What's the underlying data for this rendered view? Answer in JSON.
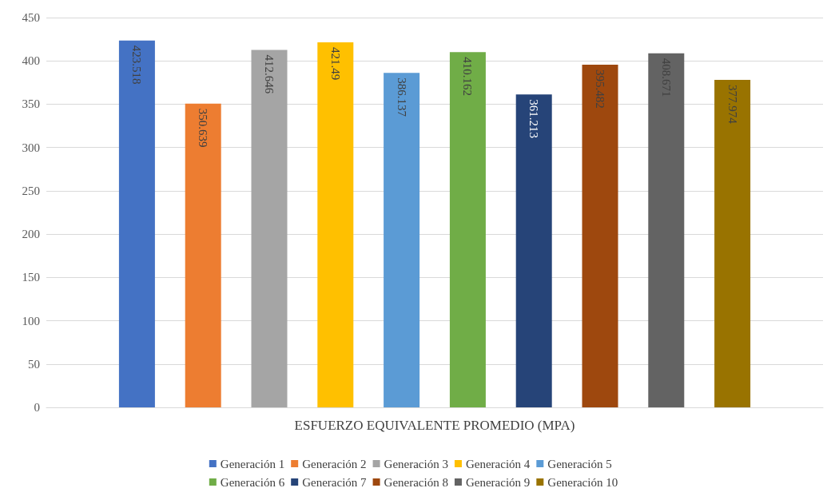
{
  "chart_data": {
    "type": "bar",
    "xlabel": "ESFUERZO EQUIVALENTE PROMEDIO (MPA)",
    "categories": [
      null
    ],
    "series": [
      {
        "name": "Generación 1",
        "color": "#4472c4",
        "values": [
          423.518
        ]
      },
      {
        "name": "Generación 2",
        "color": "#ed7d31",
        "values": [
          350.639
        ]
      },
      {
        "name": "Generación 3",
        "color": "#a5a5a5",
        "values": [
          412.646
        ]
      },
      {
        "name": "Generación 4",
        "color": "#ffc000",
        "values": [
          421.49
        ]
      },
      {
        "name": "Generación 5",
        "color": "#5b9bd5",
        "values": [
          386.137
        ]
      },
      {
        "name": "Generación 6",
        "color": "#70ad47",
        "values": [
          410.162
        ]
      },
      {
        "name": "Generación 7",
        "color": "#264478",
        "values": [
          361.213
        ]
      },
      {
        "name": "Generación 8",
        "color": "#9e480e",
        "values": [
          395.482
        ]
      },
      {
        "name": "Generación 9",
        "color": "#636363",
        "values": [
          408.671
        ]
      },
      {
        "name": "Generación 10",
        "color": "#997300",
        "values": [
          377.974
        ]
      }
    ],
    "ylim": [
      0,
      450
    ],
    "yticks": [
      0,
      50,
      100,
      150,
      200,
      250,
      300,
      350,
      400,
      450
    ],
    "grid": "y",
    "legend": "bottom",
    "data_labels": true
  }
}
